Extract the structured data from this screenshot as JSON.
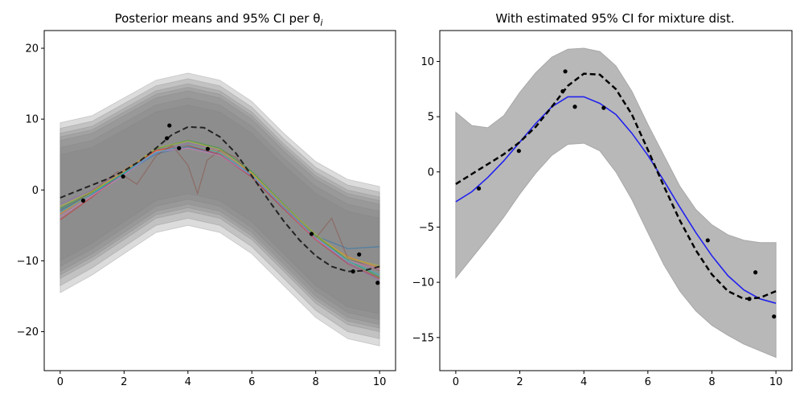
{
  "chart_data": [
    {
      "type": "line",
      "title": "Posterior means and 95% CI per θ",
      "title_subscript": "i",
      "xlabel": "",
      "ylabel": "",
      "xlim": [
        -0.5,
        10.5
      ],
      "ylim": [
        -25.5,
        22.5
      ],
      "xticks": [
        0,
        2,
        4,
        6,
        8,
        10
      ],
      "yticks": [
        -20,
        -10,
        0,
        10,
        20
      ],
      "grid": false,
      "legend": "none",
      "true_function": {
        "style": "dashed",
        "color": "#222222",
        "x": [
          0,
          0.5,
          1,
          1.5,
          2,
          2.5,
          3,
          3.5,
          4,
          4.5,
          5,
          5.5,
          6,
          6.5,
          7,
          7.5,
          8,
          8.5,
          9,
          9.5,
          10
        ],
        "y": [
          -1.1,
          -0.2,
          0.7,
          1.6,
          2.7,
          4.1,
          5.9,
          7.8,
          8.9,
          8.8,
          7.5,
          5.2,
          2.0,
          -1.3,
          -4.4,
          -7.1,
          -9.3,
          -10.8,
          -11.5,
          -11.4,
          -10.8
        ]
      },
      "observations": {
        "color": "#000000",
        "x": [
          0.72,
          1.97,
          3.34,
          3.42,
          3.72,
          4.62,
          7.87,
          9.17,
          9.36,
          9.94
        ],
        "y": [
          -1.5,
          1.9,
          7.3,
          9.1,
          5.9,
          5.8,
          -6.2,
          -11.5,
          -9.1,
          -13.1
        ]
      },
      "posterior_means": [
        {
          "color": "#1f77b4",
          "x": [
            0,
            1,
            2,
            3,
            4,
            5,
            6,
            7,
            8,
            9,
            10
          ],
          "y": [
            -2.8,
            -0.6,
            2.3,
            5.1,
            6.1,
            5.0,
            1.9,
            -2.6,
            -6.5,
            -8.3,
            -8.0
          ]
        },
        {
          "color": "#ff7f0e",
          "x": [
            0,
            1,
            2,
            3,
            4,
            5,
            6,
            7,
            8,
            9,
            10
          ],
          "y": [
            -3.4,
            -0.4,
            2.8,
            5.5,
            6.4,
            5.4,
            2.3,
            -2.3,
            -6.6,
            -9.4,
            -11.0
          ]
        },
        {
          "color": "#2ca02c",
          "x": [
            0,
            1,
            2,
            3,
            4,
            5,
            6,
            7,
            8,
            9,
            10
          ],
          "y": [
            -2.6,
            -0.3,
            2.4,
            5.8,
            7.0,
            5.9,
            2.6,
            -2.0,
            -6.4,
            -9.9,
            -12.3
          ]
        },
        {
          "color": "#d62728",
          "x": [
            0,
            1,
            2,
            3,
            4,
            5,
            6,
            7,
            8,
            9,
            10
          ],
          "y": [
            -4.2,
            -1.0,
            2.6,
            5.6,
            6.3,
            5.0,
            1.8,
            -2.7,
            -7.0,
            -10.4,
            -12.5
          ]
        },
        {
          "color": "#9467bd",
          "x": [
            0,
            1,
            2,
            3,
            4,
            5,
            6,
            7,
            8,
            9,
            10
          ],
          "y": [
            -2.0,
            0.0,
            2.7,
            5.2,
            6.6,
            5.6,
            2.1,
            -2.2,
            -6.8,
            -10.3,
            -12.8
          ]
        },
        {
          "color": "#8c564b",
          "x": [
            0,
            0.6,
            1.2,
            1.8,
            2.4,
            3.0,
            3.5,
            4.0,
            4.3,
            4.6,
            5.0,
            5.5,
            6.0,
            7.0,
            8.0,
            8.5,
            9.0,
            10
          ],
          "y": [
            -3.0,
            -1.4,
            0.5,
            2.6,
            0.8,
            4.8,
            6.3,
            3.5,
            -0.5,
            4.2,
            5.6,
            4.6,
            1.8,
            -2.4,
            -6.8,
            -4.0,
            -9.6,
            -11.4
          ]
        },
        {
          "color": "#e377c2",
          "x": [
            0,
            1,
            2,
            3,
            4,
            5,
            6,
            7,
            8,
            9,
            10
          ],
          "y": [
            -3.8,
            -0.8,
            2.1,
            5.4,
            5.9,
            4.9,
            2.0,
            -2.5,
            -6.9,
            -10.0,
            -11.2
          ]
        },
        {
          "color": "#bcbd22",
          "x": [
            0,
            1,
            2,
            3,
            4,
            5,
            6,
            7,
            8,
            9,
            10
          ],
          "y": [
            -2.3,
            -0.2,
            2.6,
            5.9,
            6.9,
            5.7,
            2.4,
            -2.1,
            -6.3,
            -9.6,
            -10.7
          ]
        },
        {
          "color": "#17becf",
          "x": [
            0,
            1,
            2,
            3,
            4,
            5,
            6,
            7,
            8,
            9,
            10
          ],
          "y": [
            -3.1,
            -0.5,
            2.4,
            5.3,
            6.4,
            5.3,
            2.1,
            -2.4,
            -6.7,
            -10.0,
            -12.0
          ]
        }
      ],
      "ci_bands": {
        "color": "#808080",
        "x": [
          0,
          1,
          2,
          3,
          4,
          5,
          6,
          7,
          8,
          9,
          10
        ],
        "typical_lower": [
          -12.0,
          -9.5,
          -6.5,
          -3.5,
          -2.5,
          -3.5,
          -6.5,
          -11.0,
          -15.5,
          -18.5,
          -19.5
        ],
        "typical_upper": [
          7.5,
          8.5,
          11.0,
          13.5,
          14.5,
          13.5,
          10.5,
          6.0,
          2.0,
          -0.5,
          -1.5
        ],
        "offsets": [
          -2.5,
          -1.5,
          -0.5,
          0,
          0.5,
          1.2,
          2.0
        ]
      }
    },
    {
      "type": "line",
      "title": "With estimated 95% CI for mixture dist.",
      "xlabel": "",
      "ylabel": "",
      "xlim": [
        -0.5,
        10.5
      ],
      "ylim": [
        -18.0,
        12.8
      ],
      "xticks": [
        0,
        2,
        4,
        6,
        8,
        10
      ],
      "yticks": [
        -15,
        -10,
        -5,
        0,
        5,
        10
      ],
      "grid": false,
      "legend": "none",
      "ci_band": {
        "color": "#b8b8b8",
        "x": [
          0,
          0.5,
          1,
          1.5,
          2,
          2.5,
          3,
          3.5,
          4,
          4.5,
          5,
          5.5,
          6,
          6.5,
          7,
          7.5,
          8,
          8.5,
          9,
          9.5,
          10
        ],
        "lower": [
          -9.6,
          -7.8,
          -6.0,
          -4.1,
          -2.0,
          -0.1,
          1.5,
          2.5,
          2.6,
          1.9,
          0.0,
          -2.5,
          -5.5,
          -8.4,
          -10.8,
          -12.6,
          -13.9,
          -14.8,
          -15.6,
          -16.2,
          -16.8
        ],
        "upper": [
          5.4,
          4.2,
          4.0,
          5.1,
          7.2,
          9.0,
          10.4,
          11.1,
          11.2,
          10.9,
          9.6,
          7.3,
          4.3,
          1.5,
          -1.3,
          -3.4,
          -4.8,
          -5.7,
          -6.2,
          -6.4,
          -6.4
        ]
      },
      "mixture_mean": {
        "color": "#2222ee",
        "x": [
          0,
          0.5,
          1,
          1.5,
          2,
          2.5,
          3,
          3.5,
          4,
          4.5,
          5,
          5.5,
          6,
          6.5,
          7,
          7.5,
          8,
          8.5,
          9,
          9.5,
          10
        ],
        "y": [
          -2.7,
          -1.8,
          -0.5,
          1.0,
          2.7,
          4.4,
          5.9,
          6.8,
          6.8,
          6.2,
          5.2,
          3.5,
          1.5,
          -0.8,
          -3.2,
          -5.5,
          -7.6,
          -9.4,
          -10.7,
          -11.5,
          -11.9
        ]
      },
      "true_function": {
        "style": "dashed",
        "color": "#000000",
        "x": [
          0,
          0.5,
          1,
          1.5,
          2,
          2.5,
          3,
          3.5,
          4,
          4.5,
          5,
          5.5,
          6,
          6.5,
          7,
          7.5,
          8,
          8.5,
          9,
          9.5,
          10
        ],
        "y": [
          -1.1,
          -0.2,
          0.7,
          1.6,
          2.7,
          4.1,
          5.9,
          7.8,
          8.9,
          8.8,
          7.5,
          5.2,
          2.0,
          -1.3,
          -4.4,
          -7.1,
          -9.3,
          -10.8,
          -11.5,
          -11.4,
          -10.8
        ]
      },
      "observations": {
        "color": "#000000",
        "x": [
          0.72,
          1.97,
          3.34,
          3.42,
          3.72,
          4.62,
          7.87,
          9.17,
          9.36,
          9.94
        ],
        "y": [
          -1.5,
          1.9,
          7.3,
          9.1,
          5.9,
          5.8,
          -6.2,
          -11.5,
          -9.1,
          -13.1
        ]
      }
    }
  ]
}
